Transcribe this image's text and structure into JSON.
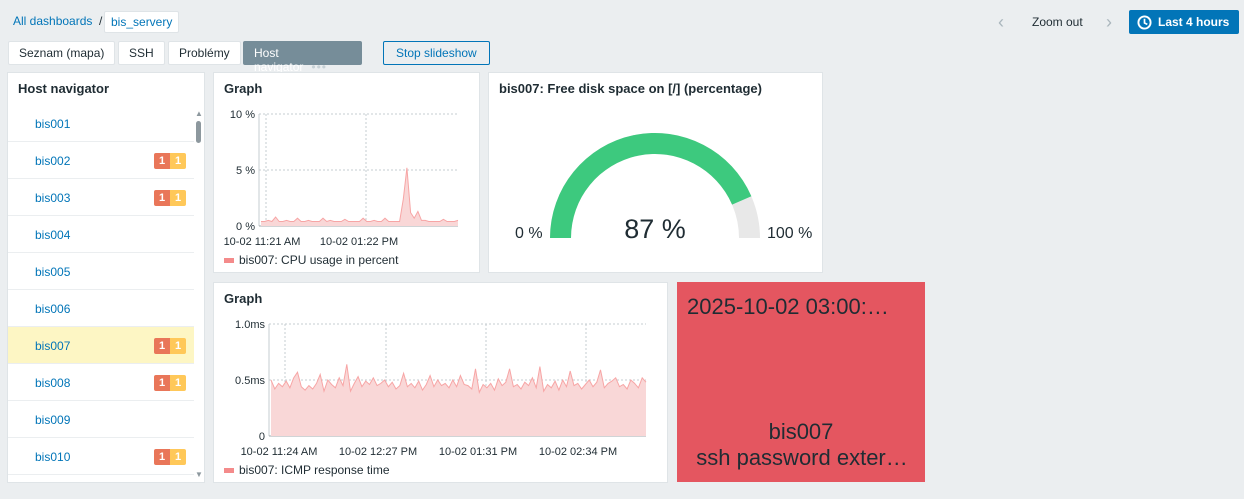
{
  "breadcrumb": {
    "root": "All dashboards",
    "separator": "/",
    "current": "bis_servery"
  },
  "pages": [
    {
      "label": "Seznam (mapa)"
    },
    {
      "label": "SSH"
    },
    {
      "label": "Problémy"
    },
    {
      "label": "Host navigator",
      "active": true
    }
  ],
  "page_menu_icon": "more-dots-icon",
  "stop_slideshow": "Stop slideshow",
  "time": {
    "zoom_out": "Zoom out",
    "range": "Last 4 hours",
    "icon": "clock-icon"
  },
  "host_navigator": {
    "title": "Host navigator",
    "hosts": [
      {
        "name": "bis001"
      },
      {
        "name": "bis002",
        "high": "1",
        "avg": "1"
      },
      {
        "name": "bis003",
        "high": "1",
        "avg": "1"
      },
      {
        "name": "bis004"
      },
      {
        "name": "bis005"
      },
      {
        "name": "bis006"
      },
      {
        "name": "bis007",
        "high": "1",
        "avg": "1",
        "selected": true
      },
      {
        "name": "bis008",
        "high": "1",
        "avg": "1"
      },
      {
        "name": "bis009"
      },
      {
        "name": "bis010",
        "high": "1",
        "avg": "1"
      }
    ],
    "colors": {
      "high": "#e97659",
      "average": "#ffc859",
      "selected": "#fdf6c4"
    }
  },
  "chart_data": [
    {
      "type": "area",
      "title": "Graph",
      "y_ticks": [
        "10 %",
        "5 %",
        "0 %"
      ],
      "ylim": [
        0,
        10
      ],
      "x_ticks": [
        "10-02 11:21 AM",
        "10-02 01:22 PM"
      ],
      "series": [
        {
          "name": "bis007: CPU usage in percent",
          "color": "#f48b8b",
          "values": [
            0.4,
            0.4,
            0.5,
            0.4,
            0.8,
            0.4,
            0.4,
            0.5,
            0.4,
            0.4,
            0.7,
            0.4,
            0.4,
            0.5,
            0.4,
            0.4,
            0.4,
            0.7,
            0.4,
            0.5,
            0.4,
            0.4,
            0.4,
            0.6,
            0.4,
            0.4,
            0.4,
            0.4,
            0.7,
            0.4,
            0.4,
            0.5,
            0.4,
            0.4,
            0.7,
            0.4,
            0.4,
            0.4,
            0.4,
            2.4,
            5.2,
            1.2,
            0.7,
            1.3,
            0.5,
            0.5,
            0.4,
            0.4,
            0.4,
            0.4,
            0.6,
            0.4,
            0.4,
            0.4,
            0.5
          ]
        }
      ]
    },
    {
      "type": "area",
      "title": "Graph",
      "y_ticks": [
        "1.0ms",
        "0.5ms",
        "0"
      ],
      "ylim": [
        0,
        1.0
      ],
      "x_ticks": [
        "10-02 11:24 AM",
        "10-02 12:27 PM",
        "10-02 01:31 PM",
        "10-02 02:34 PM"
      ],
      "series": [
        {
          "name": "bis007: ICMP response time",
          "color": "#f48b8b",
          "values": [
            0.5,
            0.42,
            0.47,
            0.44,
            0.49,
            0.43,
            0.52,
            0.57,
            0.44,
            0.41,
            0.45,
            0.42,
            0.47,
            0.55,
            0.4,
            0.5,
            0.46,
            0.43,
            0.52,
            0.45,
            0.64,
            0.4,
            0.47,
            0.53,
            0.44,
            0.49,
            0.46,
            0.52,
            0.45,
            0.47,
            0.5,
            0.44,
            0.48,
            0.42,
            0.45,
            0.56,
            0.44,
            0.47,
            0.43,
            0.49,
            0.41,
            0.46,
            0.54,
            0.44,
            0.5,
            0.45,
            0.47,
            0.43,
            0.5,
            0.44,
            0.54,
            0.46,
            0.45,
            0.42,
            0.6,
            0.39,
            0.46,
            0.43,
            0.47,
            0.41,
            0.51,
            0.45,
            0.48,
            0.6,
            0.44,
            0.46,
            0.42,
            0.48,
            0.45,
            0.52,
            0.43,
            0.62,
            0.4,
            0.46,
            0.43,
            0.49,
            0.41,
            0.5,
            0.44,
            0.58,
            0.45,
            0.47,
            0.42,
            0.46,
            0.5,
            0.44,
            0.48,
            0.59,
            0.43,
            0.47,
            0.49,
            0.52,
            0.44,
            0.46,
            0.42,
            0.5,
            0.47,
            0.43,
            0.52,
            0.48
          ]
        }
      ]
    }
  ],
  "gauge": {
    "title": "bis007: Free disk space on [/] (percentage)",
    "value": 87,
    "value_label": "87 %",
    "min_label": "0 %",
    "max_label": "100 %",
    "colors": {
      "fill": "#3dc97e",
      "empty": "#e8e8e8"
    }
  },
  "problem": {
    "time": "2025-10-02 03:00:…",
    "host": "bis007",
    "description": "ssh password exter…",
    "color": "#e45660"
  }
}
